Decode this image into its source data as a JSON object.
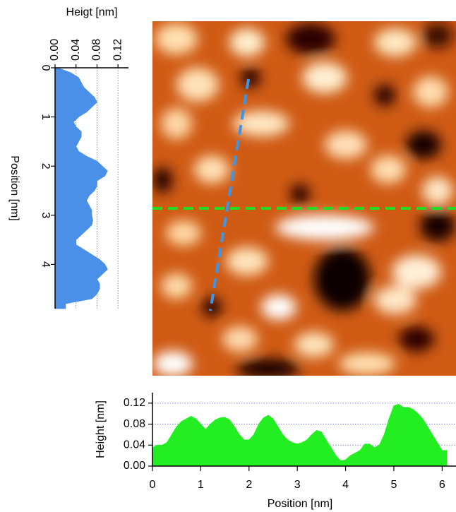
{
  "chart_data": [
    {
      "type": "area",
      "orientation": "vertical",
      "xlabel": "Position [nm]",
      "ylabel": "Heigt [nm]",
      "color": "#4a8fe8",
      "grid": true,
      "xlim": [
        0,
        4.9
      ],
      "xticks": [
        0,
        1,
        2,
        3,
        4
      ],
      "ylim": [
        0,
        0.14
      ],
      "yticks": [
        {
          "value": 0,
          "label": "0.00"
        },
        0.04,
        0.08,
        0.12
      ],
      "x": [
        0,
        0.1,
        0.2,
        0.3,
        0.4,
        0.5,
        0.6,
        0.7,
        0.8,
        0.9,
        1,
        1.1,
        1.2,
        1.3,
        1.4,
        1.5,
        1.6,
        1.7,
        1.8,
        1.9,
        2,
        2.1,
        2.2,
        2.3,
        2.4,
        2.5,
        2.6,
        2.7,
        2.8,
        2.9,
        3,
        3.1,
        3.2,
        3.3,
        3.4,
        3.5,
        3.6,
        3.7,
        3.8,
        3.9,
        4,
        4.1,
        4.2,
        4.3,
        4.4,
        4.5,
        4.6,
        4.7,
        4.8,
        4.9
      ],
      "values": [
        0.005,
        0.03,
        0.045,
        0.05,
        0.055,
        0.065,
        0.075,
        0.08,
        0.07,
        0.06,
        0.045,
        0.035,
        0.04,
        0.05,
        0.05,
        0.045,
        0.04,
        0.045,
        0.06,
        0.08,
        0.09,
        0.1,
        0.095,
        0.08,
        0.08,
        0.075,
        0.065,
        0.06,
        0.065,
        0.07,
        0.07,
        0.072,
        0.07,
        0.06,
        0.05,
        0.04,
        0.04,
        0.055,
        0.07,
        0.085,
        0.095,
        0.1,
        0.09,
        0.08,
        0.085,
        0.085,
        0.08,
        0.07,
        0.02,
        0.02
      ]
    },
    {
      "type": "area",
      "orientation": "horizontal",
      "xlabel": "Position [nm]",
      "ylabel": "Height [nm]",
      "color": "#22ee22",
      "grid": true,
      "xlim": [
        0,
        6.2
      ],
      "xticks": [
        0,
        1,
        2,
        3,
        4,
        5,
        6
      ],
      "ylim": [
        0,
        0.14
      ],
      "yticks": [
        {
          "value": 0,
          "label": "0.00"
        },
        0.04,
        0.08,
        0.12
      ],
      "x": [
        0,
        0.1,
        0.2,
        0.3,
        0.4,
        0.5,
        0.6,
        0.7,
        0.8,
        0.9,
        1,
        1.1,
        1.2,
        1.3,
        1.4,
        1.5,
        1.6,
        1.7,
        1.8,
        1.9,
        2,
        2.1,
        2.2,
        2.3,
        2.4,
        2.5,
        2.6,
        2.7,
        2.8,
        2.9,
        3,
        3.1,
        3.2,
        3.3,
        3.4,
        3.5,
        3.6,
        3.7,
        3.8,
        3.9,
        4,
        4.1,
        4.2,
        4.3,
        4.4,
        4.5,
        4.6,
        4.7,
        4.8,
        4.9,
        5,
        5.1,
        5.2,
        5.3,
        5.4,
        5.5,
        5.6,
        5.7,
        5.8,
        5.9,
        6,
        6.1
      ],
      "values": [
        0.035,
        0.04,
        0.04,
        0.045,
        0.06,
        0.075,
        0.085,
        0.09,
        0.095,
        0.09,
        0.08,
        0.07,
        0.08,
        0.088,
        0.092,
        0.093,
        0.088,
        0.075,
        0.06,
        0.05,
        0.05,
        0.06,
        0.08,
        0.092,
        0.097,
        0.09,
        0.075,
        0.06,
        0.05,
        0.045,
        0.042,
        0.045,
        0.05,
        0.06,
        0.068,
        0.065,
        0.05,
        0.035,
        0.02,
        0.01,
        0.012,
        0.02,
        0.025,
        0.03,
        0.042,
        0.042,
        0.035,
        0.04,
        0.06,
        0.09,
        0.115,
        0.118,
        0.112,
        0.112,
        0.108,
        0.1,
        0.09,
        0.075,
        0.06,
        0.045,
        0.03,
        0.03
      ]
    }
  ]
}
